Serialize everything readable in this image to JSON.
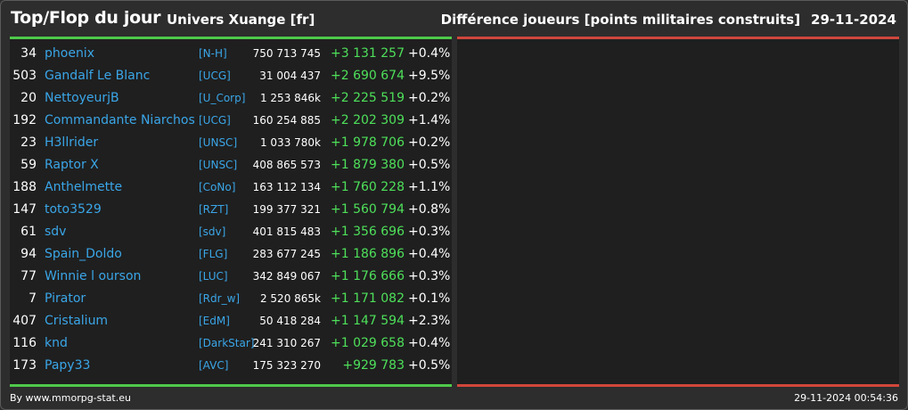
{
  "header": {
    "title": "Top/Flop du jour",
    "universe": "Univers Xuange [fr]",
    "metric": "Différence joueurs [points militaires construits]",
    "date": "29-11-2024"
  },
  "colors": {
    "background": "#2d2d2d",
    "panel": "#1f1f1f",
    "top_bar": "#4ec94a",
    "flop_bar": "#d0463c",
    "link": "#3aa6e8",
    "gain": "#4ee05a"
  },
  "top_players": [
    {
      "rank": "34",
      "name": "phoenix",
      "alliance": "[N-H]",
      "points": "750 713 745",
      "delta": "+3 131 257",
      "pct": "+0.4%"
    },
    {
      "rank": "503",
      "name": "Gandalf Le Blanc",
      "alliance": "[UCG]",
      "points": "31 004 437",
      "delta": "+2 690 674",
      "pct": "+9.5%"
    },
    {
      "rank": "20",
      "name": "NettoyeurjB",
      "alliance": "[U_Corp]",
      "points": "1 253 846k",
      "delta": "+2 225 519",
      "pct": "+0.2%"
    },
    {
      "rank": "192",
      "name": "Commandante Niarchos",
      "alliance": "[UCG]",
      "points": "160 254 885",
      "delta": "+2 202 309",
      "pct": "+1.4%"
    },
    {
      "rank": "23",
      "name": "H3llrider",
      "alliance": "[UNSC]",
      "points": "1 033 780k",
      "delta": "+1 978 706",
      "pct": "+0.2%"
    },
    {
      "rank": "59",
      "name": "Raptor X",
      "alliance": "[UNSC]",
      "points": "408 865 573",
      "delta": "+1 879 380",
      "pct": "+0.5%"
    },
    {
      "rank": "188",
      "name": "Anthelmette",
      "alliance": "[CoNo]",
      "points": "163 112 134",
      "delta": "+1 760 228",
      "pct": "+1.1%"
    },
    {
      "rank": "147",
      "name": "toto3529",
      "alliance": "[RZT]",
      "points": "199 377 321",
      "delta": "+1 560 794",
      "pct": "+0.8%"
    },
    {
      "rank": "61",
      "name": "sdv",
      "alliance": "[sdv]",
      "points": "401 815 483",
      "delta": "+1 356 696",
      "pct": "+0.3%"
    },
    {
      "rank": "94",
      "name": "Spain_Doldo",
      "alliance": "[FLG]",
      "points": "283 677 245",
      "delta": "+1 186 896",
      "pct": "+0.4%"
    },
    {
      "rank": "77",
      "name": "Winnie l ourson",
      "alliance": "[LUC]",
      "points": "342 849 067",
      "delta": "+1 176 666",
      "pct": "+0.3%"
    },
    {
      "rank": "7",
      "name": "Pirator",
      "alliance": "[Rdr_w]",
      "points": "2 520 865k",
      "delta": "+1 171 082",
      "pct": "+0.1%"
    },
    {
      "rank": "407",
      "name": "Cristalium",
      "alliance": "[EdM]",
      "points": "50 418 284",
      "delta": "+1 147 594",
      "pct": "+2.3%"
    },
    {
      "rank": "116",
      "name": "knd",
      "alliance": "[DarkStar]",
      "points": "241 310 267",
      "delta": "+1 029 658",
      "pct": "+0.4%"
    },
    {
      "rank": "173",
      "name": "Papy33",
      "alliance": "[AVC]",
      "points": "175 323 270",
      "delta": "+929 783",
      "pct": "+0.5%"
    }
  ],
  "footer": {
    "credit": "By www.mmorpg-stat.eu",
    "timestamp": "29-11-2024 00:54:36"
  }
}
